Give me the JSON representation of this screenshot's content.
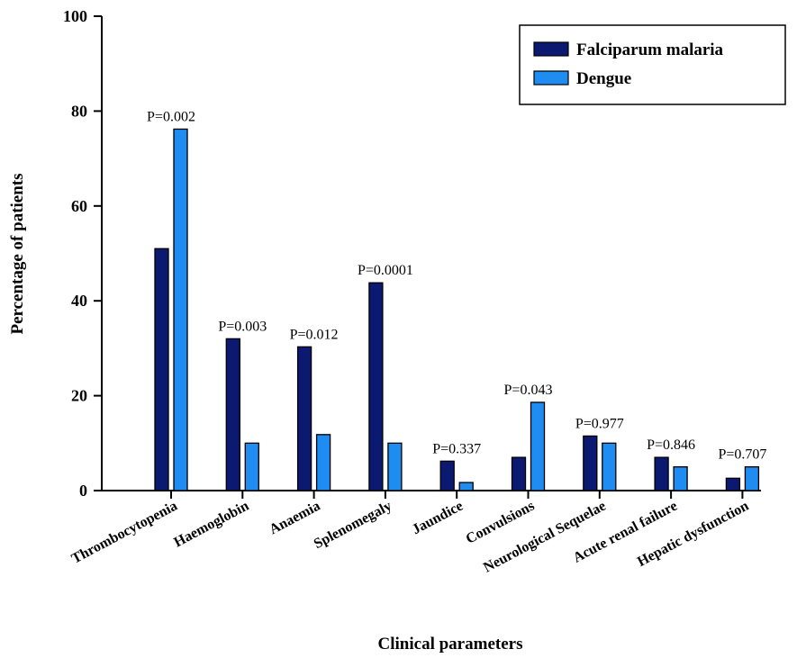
{
  "chart_data": {
    "type": "bar",
    "xlabel": "Clinical parameters",
    "ylabel": "Percentage of patients",
    "ylim": [
      0,
      100
    ],
    "yticks": [
      0,
      20,
      40,
      60,
      80,
      100
    ],
    "grid": false,
    "legend_position": "top-right",
    "categories": [
      "Thrombocytopenia",
      "Haemoglobin",
      "Anaemia",
      "Splenomegaly",
      "Jaundice",
      "Convulsions",
      "Neurological Sequelae",
      "Acute renal failure",
      "Hepatic dysfunction"
    ],
    "series": [
      {
        "name": "Falciparum malaria",
        "color": "#0b1970",
        "values": [
          51,
          32,
          30.3,
          43.8,
          6.2,
          7,
          11.5,
          7,
          2.6
        ]
      },
      {
        "name": "Dengue",
        "color": "#1e8cf0",
        "values": [
          76.2,
          10,
          11.8,
          10,
          1.7,
          18.6,
          10,
          5,
          5
        ]
      }
    ],
    "annotations": [
      "P=0.002",
      "P=0.003",
      "P=0.012",
      "P=0.0001",
      "P=0.337",
      "P=0.043",
      "P=0.977",
      "P=0.846",
      "P=0.707"
    ]
  }
}
